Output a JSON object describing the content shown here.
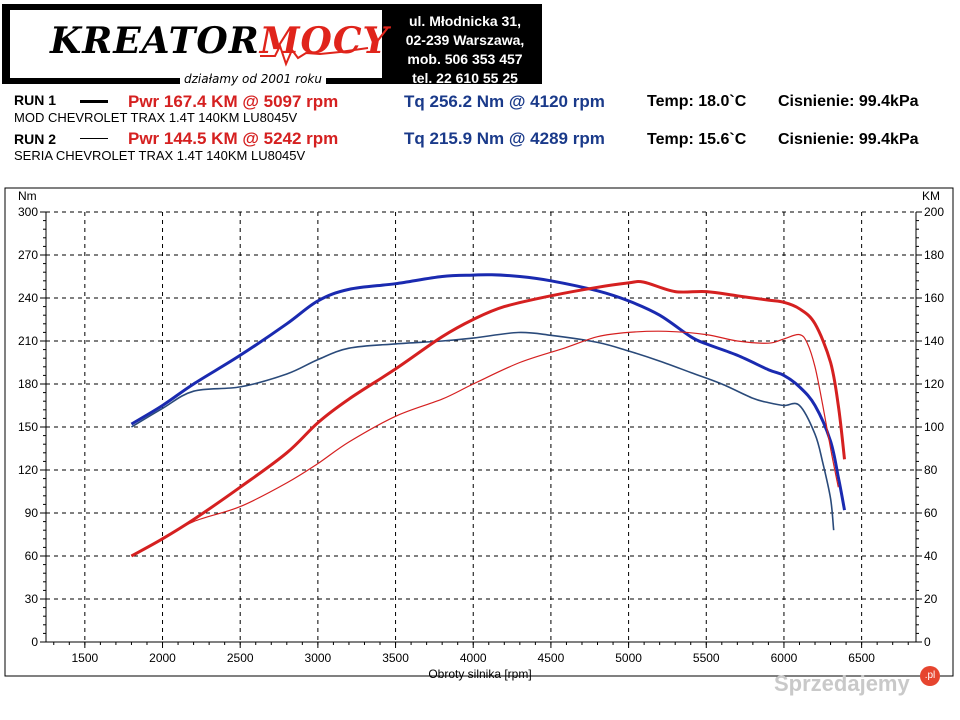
{
  "header": {
    "logo_main": "KREATOR",
    "logo_accent": "MOCY",
    "logo_sub": "działamy od 2001 roku",
    "address_lines": [
      "ul. Młodnicka 31,",
      "02-239  Warszawa,",
      "mob.  506 353 457",
      "tel.  22 610 55 25"
    ]
  },
  "runs": [
    {
      "label": "RUN 1",
      "name": "MOD CHEVROLET TRAX 1.4T 140KM LU8045V",
      "pwr": "Pwr  167.4 KM @ 5097 rpm",
      "tq": "Tq 256.2 Nm @ 4120 rpm",
      "temp": "Temp: 18.0`C",
      "press": "Cisnienie: 99.4kPa"
    },
    {
      "label": "RUN 2",
      "name": "SERIA CHEVROLET TRAX 1.4T 140KM LU8045V",
      "pwr": "Pwr  144.5 KM @ 5242 rpm",
      "tq": "Tq 215.9 Nm @ 4289 rpm",
      "temp": "Temp: 15.6`C",
      "press": "Cisnienie: 99.4kPa"
    }
  ],
  "watermark": "Sprzedajemy",
  "watermark_badge": ".pl",
  "chart_data": {
    "type": "line",
    "xlabel": "Obroty silnika [rpm]",
    "ylabel_left": "Nm",
    "ylabel_right": "KM",
    "xlim": [
      1250,
      6850
    ],
    "ylim_left": [
      0,
      300
    ],
    "ylim_right": [
      0,
      200
    ],
    "x_ticks": [
      1500,
      2000,
      2500,
      3000,
      3500,
      4000,
      4500,
      5000,
      5500,
      6000,
      6500
    ],
    "y_left_ticks": [
      0,
      30,
      60,
      90,
      120,
      150,
      180,
      210,
      240,
      270,
      300
    ],
    "y_right_ticks": [
      0,
      20,
      40,
      60,
      80,
      100,
      120,
      140,
      160,
      180,
      200
    ],
    "grid": true,
    "series": [
      {
        "axis": "left",
        "color": "#1a2ab0",
        "width": 3,
        "x": [
          1800,
          2000,
          2200,
          2500,
          2800,
          3000,
          3200,
          3500,
          3800,
          4000,
          4120,
          4300,
          4500,
          4800,
          5000,
          5200,
          5400,
          5500,
          5700,
          5900,
          6000,
          6100,
          6200,
          6300,
          6350,
          6390
        ],
        "y": [
          152,
          165,
          180,
          200,
          222,
          238,
          246,
          250,
          255,
          256,
          256.2,
          255,
          252,
          245,
          238,
          228,
          213,
          208,
          200,
          190,
          186,
          178,
          165,
          140,
          115,
          92
        ]
      },
      {
        "axis": "left",
        "color": "#2a4a7a",
        "width": 1.6,
        "x": [
          1800,
          2000,
          2200,
          2500,
          2800,
          3000,
          3200,
          3500,
          3800,
          4000,
          4289,
          4500,
          4800,
          5000,
          5200,
          5400,
          5600,
          5800,
          5900,
          6000,
          6100,
          6200,
          6250,
          6300,
          6320
        ],
        "y": [
          150,
          163,
          175,
          178,
          187,
          197,
          205,
          208,
          210,
          212,
          215.9,
          214,
          209,
          203,
          196,
          188,
          180,
          170,
          167,
          165,
          165,
          145,
          125,
          100,
          78
        ]
      },
      {
        "axis": "right",
        "color": "#d52020",
        "width": 3,
        "x": [
          1800,
          2000,
          2200,
          2500,
          2800,
          3000,
          3200,
          3500,
          3800,
          4000,
          4200,
          4500,
          4800,
          5000,
          5097,
          5300,
          5500,
          5700,
          5900,
          6000,
          6100,
          6200,
          6300,
          6350,
          6390
        ],
        "y": [
          40,
          48,
          57,
          72,
          88,
          102,
          113,
          127,
          142,
          150,
          156,
          161,
          165,
          167,
          167.4,
          163,
          163,
          161,
          159,
          158,
          155,
          148,
          130,
          110,
          85
        ]
      },
      {
        "axis": "right",
        "color": "#d52020",
        "width": 1.2,
        "x": [
          1800,
          2000,
          2200,
          2500,
          2800,
          3000,
          3200,
          3500,
          3800,
          4000,
          4300,
          4600,
          4800,
          5000,
          5242,
          5500,
          5700,
          5900,
          6000,
          6100,
          6150,
          6200,
          6250,
          6300,
          6350
        ],
        "y": [
          40,
          48,
          56,
          63,
          74,
          83,
          93,
          105,
          113,
          120,
          130,
          137,
          142,
          144,
          144.5,
          143,
          140,
          139,
          141,
          143,
          139,
          128,
          110,
          90,
          72
        ]
      }
    ]
  }
}
